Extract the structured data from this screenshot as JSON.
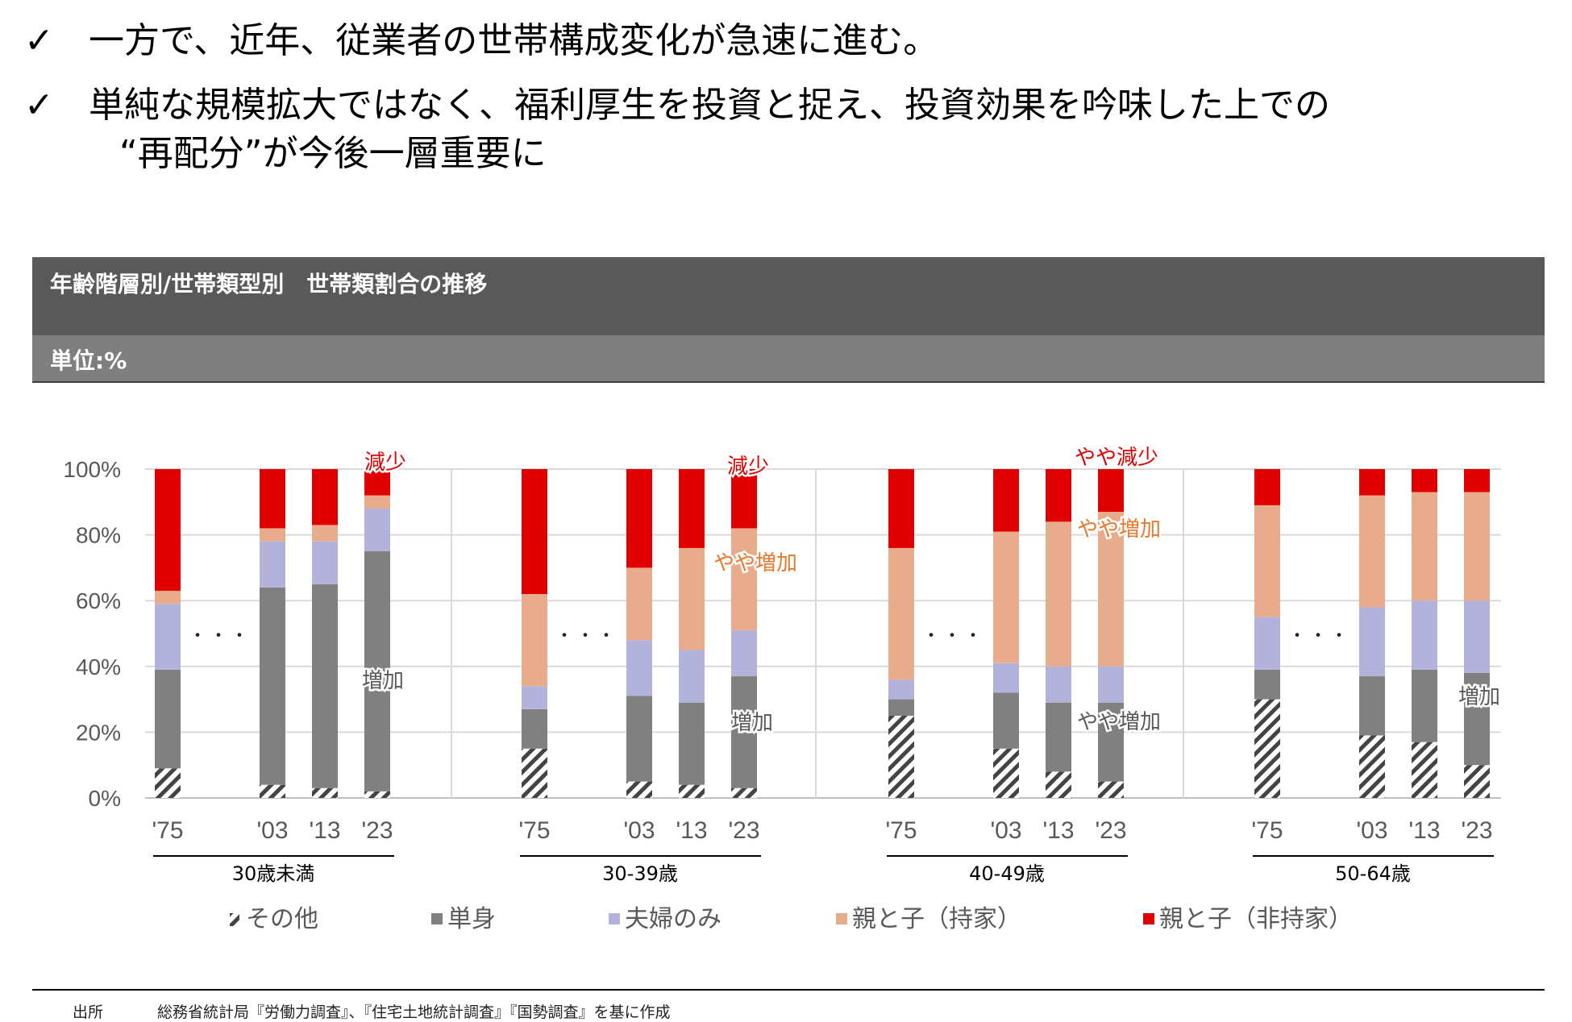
{
  "bullets": [
    {
      "mark": "✓",
      "lines": [
        "一方で、近年、従業者の世帯構成変化が急速に進む。"
      ]
    },
    {
      "mark": "✓",
      "lines": [
        "単純な規模拡大ではなく、福利厚生を投資と捉え、投資効果を吟味した上での",
        "“再配分”が今後一層重要に"
      ]
    }
  ],
  "panel": {
    "title": "年齢階層別/世帯類型別　世帯類割合の推移",
    "unit": "単位:%"
  },
  "colors": {
    "other": "#444444",
    "single": "#808080",
    "couple": "#b2b2db",
    "owner": "#e8ac8c",
    "renter": "#e00000",
    "annot_red": "#e00000",
    "annot_orange": "#e8782c",
    "annot_gray": "#595959"
  },
  "chart_data": {
    "type": "bar",
    "stacked": true,
    "title": "年齢階層別/世帯類型別　世帯類割合の推移",
    "ylabel": "単位:%",
    "ylim": [
      0,
      100
    ],
    "yticks": [
      "0%",
      "20%",
      "40%",
      "60%",
      "80%",
      "100%"
    ],
    "ellipsis": "・・・",
    "series_names": [
      "その他",
      "単身",
      "夫婦のみ",
      "親と子（持家）",
      "親と子（非持家）"
    ],
    "legend": [
      "その他",
      "単身",
      "夫婦のみ",
      "親と子（持家）",
      "親と子（非持家）"
    ],
    "groups": [
      {
        "name": "30歳未満",
        "years": [
          "'75",
          "'03",
          "'13",
          "'23"
        ],
        "values": [
          [
            9,
            30,
            20,
            4,
            37
          ],
          [
            4,
            60,
            14,
            4,
            18
          ],
          [
            3,
            62,
            13,
            5,
            17
          ],
          [
            2,
            73,
            13,
            4,
            8
          ]
        ],
        "annotations": [
          {
            "text": "減少",
            "color": "red"
          },
          {
            "text": "増加",
            "color": "gray"
          }
        ]
      },
      {
        "name": "30-39歳",
        "years": [
          "'75",
          "'03",
          "'13",
          "'23"
        ],
        "values": [
          [
            15,
            12,
            7,
            28,
            38
          ],
          [
            5,
            26,
            17,
            22,
            30
          ],
          [
            4,
            25,
            16,
            31,
            24
          ],
          [
            3,
            34,
            14,
            31,
            18
          ]
        ],
        "annotations": [
          {
            "text": "減少",
            "color": "red"
          },
          {
            "text": "やや増加",
            "color": "orange"
          },
          {
            "text": "増加",
            "color": "gray"
          }
        ]
      },
      {
        "name": "40-49歳",
        "years": [
          "'75",
          "'03",
          "'13",
          "'23"
        ],
        "values": [
          [
            25,
            5,
            6,
            40,
            24
          ],
          [
            15,
            17,
            9,
            40,
            19
          ],
          [
            8,
            21,
            11,
            44,
            16
          ],
          [
            5,
            24,
            11,
            47,
            13
          ]
        ],
        "annotations": [
          {
            "text": "やや減少",
            "color": "red"
          },
          {
            "text": "やや増加",
            "color": "orange"
          },
          {
            "text": "やや増加",
            "color": "gray"
          }
        ]
      },
      {
        "name": "50-64歳",
        "years": [
          "'75",
          "'03",
          "'13",
          "'23"
        ],
        "values": [
          [
            30,
            9,
            16,
            34,
            11
          ],
          [
            19,
            18,
            21,
            34,
            8
          ],
          [
            17,
            22,
            21,
            33,
            7
          ],
          [
            10,
            28,
            22,
            33,
            7
          ]
        ],
        "annotations": [
          {
            "text": "増加",
            "color": "gray"
          }
        ]
      }
    ]
  },
  "source": {
    "label": "出所",
    "text": "総務省統計局『労働力調査』、『住宅土地統計調査』『国勢調査』を基に作成"
  }
}
